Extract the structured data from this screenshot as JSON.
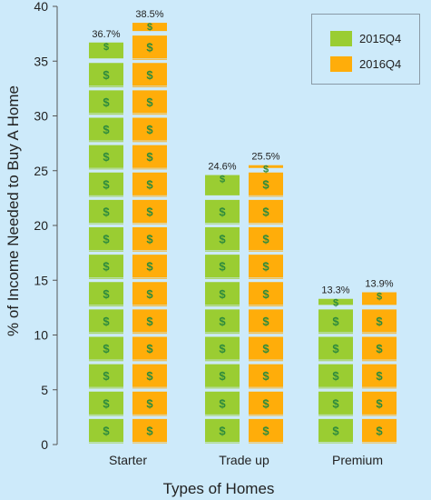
{
  "chart_data": {
    "type": "bar",
    "title": "",
    "xlabel": "Types of Homes",
    "ylabel": "% of Income Needed to Buy A Home",
    "categories": [
      "Starter",
      "Trade up",
      "Premium"
    ],
    "ylim": [
      0,
      40
    ],
    "yticks": [
      0,
      5,
      10,
      15,
      20,
      25,
      30,
      35,
      40
    ],
    "series": [
      {
        "name": "2015Q4",
        "values": [
          36.7,
          24.6,
          13.3
        ],
        "labels": [
          "36.7%",
          "24.6%",
          "13.3%"
        ]
      },
      {
        "name": "2016Q4",
        "values": [
          38.5,
          25.5,
          13.9
        ],
        "labels": [
          "38.5%",
          "25.5%",
          "13.9%"
        ]
      }
    ],
    "colors": {
      "2015Q4": "#9acd32",
      "2016Q4": "#ffad0a",
      "background": "#cdeafa",
      "dollar_sign": "#2e8b3d"
    },
    "legend_position": "top-right",
    "bar_icon": "dollar-bill-icon",
    "grid": false
  }
}
